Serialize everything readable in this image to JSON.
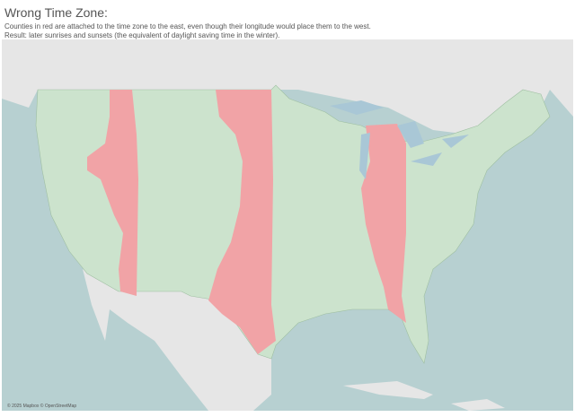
{
  "title": "Wrong Time Zone:",
  "subtitle": [
    "Counties in red are attached to the time zone to the east, even though their longitude would place them to the west.",
    "Result: later sunrises and sunsets (the equivalent of daylight saving time in the winter)."
  ],
  "attribution": "© 2025 Mapbox © OpenStreetMap"
}
